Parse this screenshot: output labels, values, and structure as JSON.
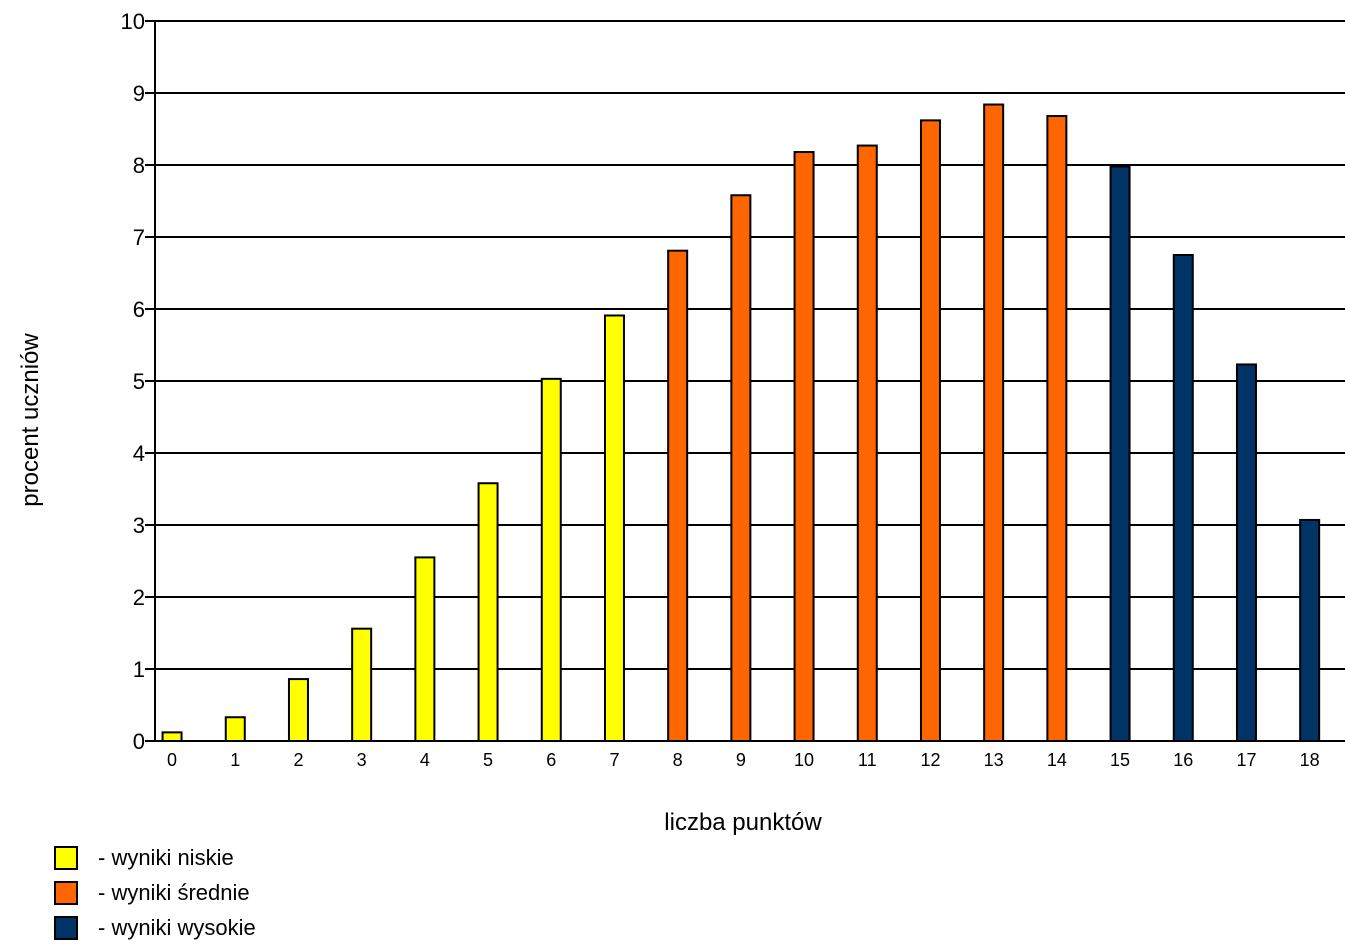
{
  "chart_data": {
    "type": "bar",
    "title": "",
    "xlabel": "liczba punktów",
    "ylabel": "procent uczniów",
    "ylim": [
      0,
      10
    ],
    "yticks": [
      0,
      1,
      2,
      3,
      4,
      5,
      6,
      7,
      8,
      9,
      10
    ],
    "grid": "horizontal",
    "legend_placement": "bottom-left",
    "categories": [
      "0",
      "1",
      "2",
      "3",
      "4",
      "5",
      "6",
      "7",
      "8",
      "9",
      "10",
      "11",
      "12",
      "13",
      "14",
      "15",
      "16",
      "17",
      "18"
    ],
    "values": [
      0.12,
      0.33,
      0.86,
      1.56,
      2.55,
      3.58,
      5.03,
      5.91,
      6.81,
      7.58,
      8.18,
      8.27,
      8.62,
      8.84,
      8.68,
      7.98,
      6.75,
      5.23,
      3.07
    ],
    "groups": [
      "niskie",
      "niskie",
      "niskie",
      "niskie",
      "niskie",
      "niskie",
      "niskie",
      "niskie",
      "srednie",
      "srednie",
      "srednie",
      "srednie",
      "srednie",
      "srednie",
      "srednie",
      "wysokie",
      "wysokie",
      "wysokie",
      "wysokie"
    ],
    "group_colors": {
      "niskie": "#ffff00",
      "srednie": "#ff6600",
      "wysokie": "#003366"
    }
  },
  "legend": {
    "items": [
      {
        "label": "- wyniki niskie",
        "color": "#ffff00"
      },
      {
        "label": "- wyniki średnie",
        "color": "#ff6600"
      },
      {
        "label": "- wyniki wysokie",
        "color": "#003366"
      }
    ]
  }
}
